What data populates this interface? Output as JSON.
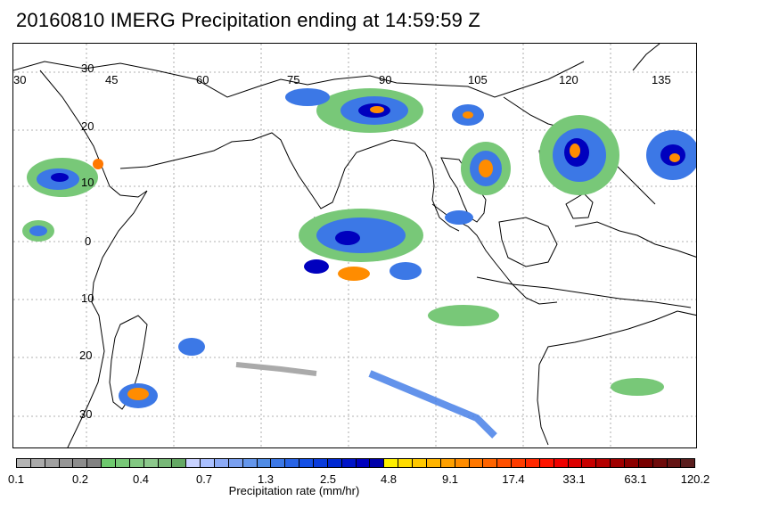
{
  "title": "20160810 IMERG Precipitation ending at 14:59:59 Z",
  "map": {
    "lon_labels": [
      "30",
      "45",
      "60",
      "75",
      "90",
      "105",
      "120",
      "135"
    ],
    "lat_labels": [
      "30",
      "20",
      "10",
      "0",
      "10",
      "20",
      "30"
    ],
    "grid": true
  },
  "colorbar": {
    "label": "Precipitation rate (mm/hr)",
    "tick_labels": [
      "0.1",
      "0.2",
      "0.4",
      "0.7",
      "1.3",
      "2.5",
      "4.8",
      "9.1",
      "17.4",
      "33.1",
      "63.1",
      "120.2"
    ],
    "colors": [
      "#b4b4b4",
      "#aaaaaa",
      "#a0a0a0",
      "#969696",
      "#8c8c8c",
      "#828282",
      "#6ec96e",
      "#78c878",
      "#82c882",
      "#8cc88c",
      "#78b878",
      "#64a864",
      "#c8d2ff",
      "#aac0ff",
      "#8caaf5",
      "#7aa0f0",
      "#6496eb",
      "#508ce6",
      "#3c78e6",
      "#2864e6",
      "#1450e6",
      "#0a3cdc",
      "#0028d2",
      "#0014c8",
      "#0000be",
      "#0000aa",
      "#fff000",
      "#ffdc00",
      "#ffc800",
      "#ffb400",
      "#ffa000",
      "#ff8c00",
      "#ff7800",
      "#ff6400",
      "#ff5000",
      "#ff3c00",
      "#ff2800",
      "#ff1400",
      "#f00000",
      "#dc0000",
      "#c80000",
      "#b40000",
      "#a00000",
      "#8c0000",
      "#780000",
      "#6e0a0a",
      "#641414",
      "#5a1e1e"
    ]
  }
}
